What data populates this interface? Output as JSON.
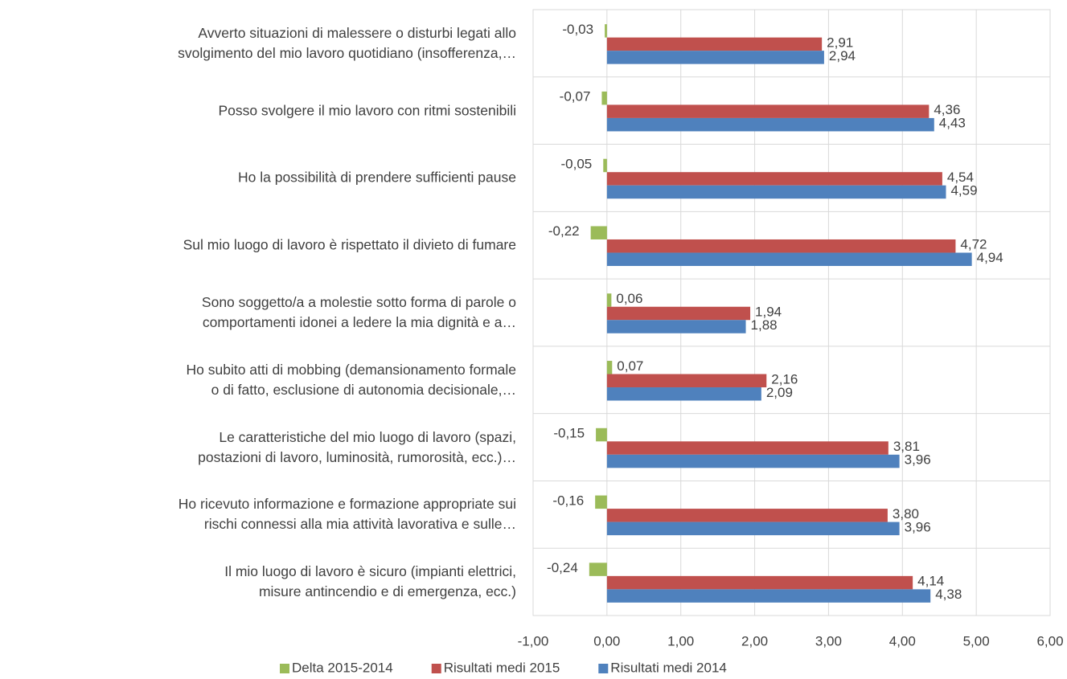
{
  "chart_data": {
    "type": "bar",
    "orientation": "horizontal",
    "categories": [
      "Avverto situazioni di malessere o disturbi legati allo\nsvolgimento del mio lavoro quotidiano (insofferenza,…",
      "Posso svolgere il mio lavoro con ritmi sostenibili",
      "Ho la possibilità di prendere sufficienti pause",
      "Sul mio luogo di lavoro è rispettato il divieto di fumare",
      "Sono soggetto/a a molestie sotto forma di parole o\ncomportamenti idonei a ledere la mia dignità e a…",
      "Ho subito atti di mobbing (demansionamento formale\no di fatto, esclusione di autonomia decisionale,…",
      "Le caratteristiche del mio luogo di lavoro (spazi,\npostazioni di lavoro, luminosità, rumorosità, ecc.)…",
      "Ho ricevuto informazione e formazione appropriate sui\nrischi connessi alla mia attività lavorativa e sulle…",
      "Il mio luogo di lavoro è sicuro (impianti elettrici,\nmisure antincendio e di emergenza, ecc.)"
    ],
    "series": [
      {
        "name": "Delta 2015-2014",
        "color": "#9bbb59",
        "values": [
          -0.03,
          -0.07,
          -0.05,
          -0.22,
          0.06,
          0.07,
          -0.15,
          -0.16,
          -0.24
        ],
        "value_labels": [
          "-0,03",
          "-0,07",
          "-0,05",
          "-0,22",
          "0,06",
          "0,07",
          "-0,15",
          "-0,16",
          "-0,24"
        ]
      },
      {
        "name": "Risultati medi 2015",
        "color": "#c0504d",
        "values": [
          2.91,
          4.36,
          4.54,
          4.72,
          1.94,
          2.16,
          3.81,
          3.8,
          4.14
        ],
        "value_labels": [
          "2,91",
          "4,36",
          "4,54",
          "4,72",
          "1,94",
          "2,16",
          "3,81",
          "3,80",
          "4,14"
        ]
      },
      {
        "name": "Risultati medi 2014",
        "color": "#4f81bd",
        "values": [
          2.94,
          4.43,
          4.59,
          4.94,
          1.88,
          2.09,
          3.96,
          3.96,
          4.38
        ],
        "value_labels": [
          "2,94",
          "4,43",
          "4,59",
          "4,94",
          "1,88",
          "2,09",
          "3,96",
          "3,96",
          "4,38"
        ]
      }
    ],
    "xlim": [
      -1,
      6
    ],
    "xticks": [
      {
        "value": -1,
        "label": "-1,00"
      },
      {
        "value": 0,
        "label": "0,00"
      },
      {
        "value": 1,
        "label": "1,00"
      },
      {
        "value": 2,
        "label": "2,00"
      },
      {
        "value": 3,
        "label": "3,00"
      },
      {
        "value": 4,
        "label": "4,00"
      },
      {
        "value": 5,
        "label": "5,00"
      },
      {
        "value": 6,
        "label": "6,00"
      }
    ],
    "grid": true,
    "legend": "bottom"
  }
}
